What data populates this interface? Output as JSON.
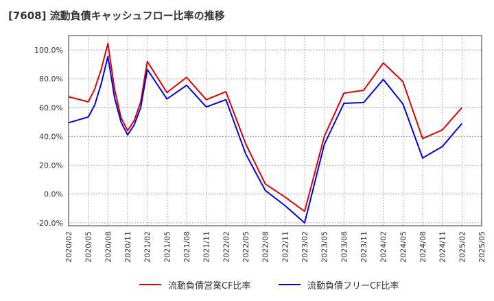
{
  "chart_data": {
    "type": "line",
    "title": "[7608]  流動負債キャッシュフロー比率の推移",
    "x": [
      "2020/02",
      "2020/05",
      "2020/08",
      "2020/11",
      "2021/02",
      "2021/05",
      "2021/08",
      "2021/11",
      "2022/02",
      "2022/05",
      "2022/08",
      "2022/11",
      "2023/02",
      "2023/05",
      "2023/08",
      "2023/11",
      "2024/02",
      "2024/05",
      "2024/08",
      "2024/11",
      "2025/02",
      "2025/05"
    ],
    "ylim": [
      -22,
      110
    ],
    "yticks": [
      -20,
      0,
      20,
      40,
      60,
      80,
      100
    ],
    "ytick_labels": [
      "-20.0%",
      "0.0%",
      "20.0%",
      "40.0%",
      "60.0%",
      "80.0%",
      "100.0%"
    ],
    "grid": true,
    "legend_position": "bottom",
    "series": [
      {
        "name": "流動負債営業CF比率",
        "color": "#dd0000",
        "points": [
          [
            "2020/02",
            67.5
          ],
          [
            "2020/05",
            64.0
          ],
          [
            "2020/06",
            73.0
          ],
          [
            "2020/07",
            87.0
          ],
          [
            "2020/08",
            104.5
          ],
          [
            "2020/09",
            73.0
          ],
          [
            "2020/10",
            53.0
          ],
          [
            "2020/11",
            44.0
          ],
          [
            "2020/12",
            51.0
          ],
          [
            "2021/01",
            64.0
          ],
          [
            "2021/02",
            92.0
          ],
          [
            "2021/05",
            70.5
          ],
          [
            "2021/08",
            81.0
          ],
          [
            "2021/11",
            65.5
          ],
          [
            "2022/02",
            71.0
          ],
          [
            "2022/05",
            35.0
          ],
          [
            "2022/08",
            7.0
          ],
          [
            "2022/11",
            -2.0
          ],
          [
            "2023/02",
            -12.0
          ],
          [
            "2023/05",
            40.0
          ],
          [
            "2023/08",
            70.0
          ],
          [
            "2023/11",
            72.0
          ],
          [
            "2024/02",
            91.0
          ],
          [
            "2024/05",
            78.0
          ],
          [
            "2024/08",
            38.5
          ],
          [
            "2024/11",
            44.5
          ],
          [
            "2025/02",
            60.0
          ]
        ]
      },
      {
        "name": "流動負債フリーCF比率",
        "color": "#0000dd",
        "points": [
          [
            "2020/02",
            49.5
          ],
          [
            "2020/05",
            53.5
          ],
          [
            "2020/06",
            62.0
          ],
          [
            "2020/07",
            77.0
          ],
          [
            "2020/08",
            95.5
          ],
          [
            "2020/09",
            67.0
          ],
          [
            "2020/10",
            50.0
          ],
          [
            "2020/11",
            41.0
          ],
          [
            "2020/12",
            48.0
          ],
          [
            "2021/01",
            60.0
          ],
          [
            "2021/02",
            86.5
          ],
          [
            "2021/05",
            66.0
          ],
          [
            "2021/08",
            75.5
          ],
          [
            "2021/11",
            60.5
          ],
          [
            "2022/02",
            65.5
          ],
          [
            "2022/05",
            28.0
          ],
          [
            "2022/08",
            2.5
          ],
          [
            "2022/11",
            -8.0
          ],
          [
            "2023/02",
            -20.0
          ],
          [
            "2023/05",
            34.5
          ],
          [
            "2023/08",
            63.0
          ],
          [
            "2023/11",
            63.5
          ],
          [
            "2024/02",
            79.5
          ],
          [
            "2024/05",
            62.5
          ],
          [
            "2024/08",
            25.0
          ],
          [
            "2024/11",
            33.0
          ],
          [
            "2025/02",
            49.0
          ]
        ]
      }
    ]
  }
}
